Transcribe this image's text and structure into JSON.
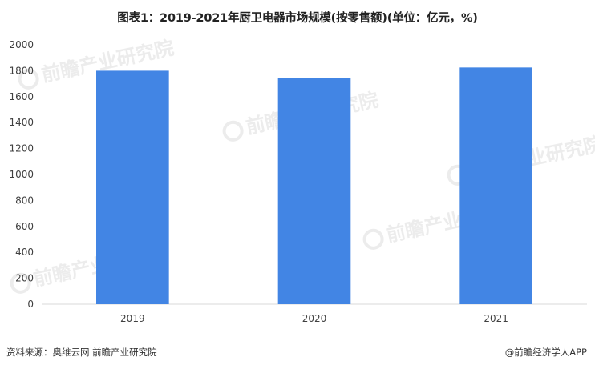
{
  "chart_data": {
    "type": "bar",
    "title": "图表1：2019-2021年厨卫电器市场规模(按零售额)(单位：亿元，%)",
    "xlabel": "",
    "ylabel": "",
    "categories": [
      "2019",
      "2020",
      "2021"
    ],
    "values": [
      1800,
      1745,
      1825
    ],
    "ylim": [
      0,
      2000
    ],
    "yticks": [
      "0",
      "200",
      "400",
      "600",
      "800",
      "1000",
      "1200",
      "1400",
      "1600",
      "1800",
      "2000"
    ],
    "grid": false,
    "legend": "none",
    "bar_color": "#4285e4",
    "axis_color": "#d9d9d9"
  },
  "footer": {
    "source": "资料来源：奥维云网 前瞻产业研究院",
    "credit": "@前瞻经济学人APP"
  },
  "watermark": {
    "text": "前瞻产业研究院"
  }
}
